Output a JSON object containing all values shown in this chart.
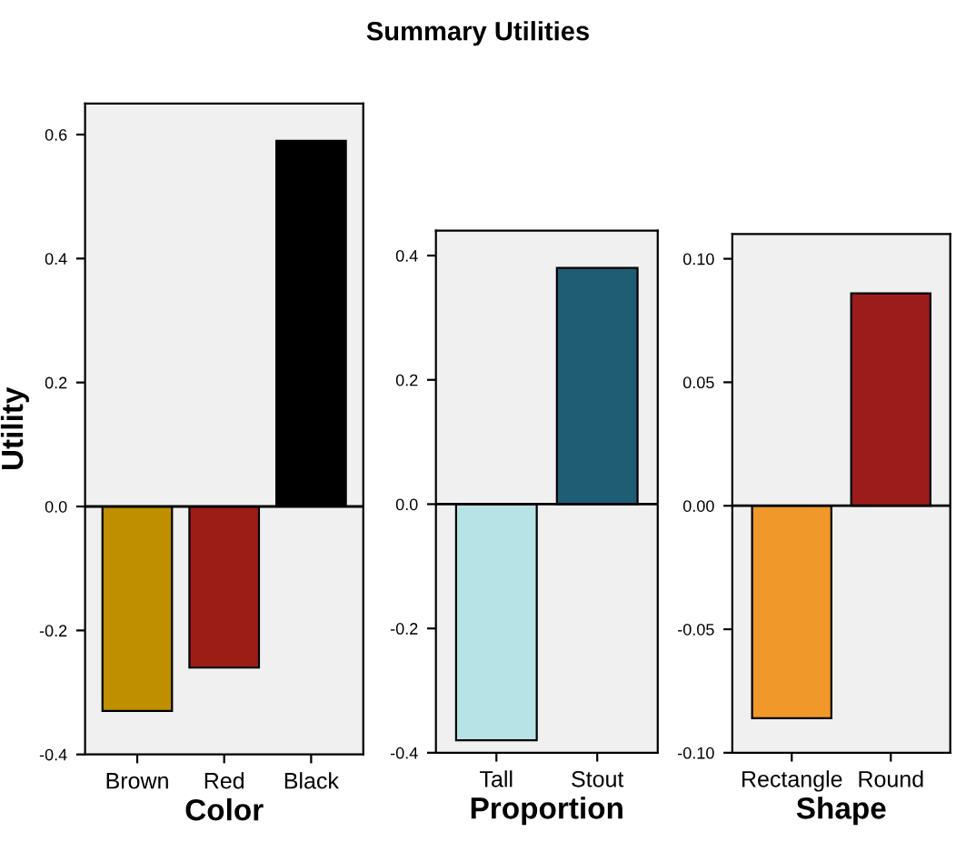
{
  "chart_data": [
    {
      "type": "bar",
      "title": "Summary Utilities",
      "xlabel": "Color",
      "ylabel": "Utility",
      "categories": [
        "Brown",
        "Red",
        "Black"
      ],
      "values": [
        -0.33,
        -0.26,
        0.59
      ],
      "colors": [
        "#bf8f00",
        "#9c1c16",
        "#000000"
      ],
      "ylim": [
        -0.4,
        0.65
      ],
      "yticks": [
        -0.4,
        -0.2,
        {
          "value": 0,
          "label": "0.0"
        },
        0.2,
        0.4,
        0.6
      ],
      "grid": false,
      "legend": false,
      "ref_lines": [
        {
          "axis": "y",
          "value": 0,
          "color": "#000000"
        }
      ]
    },
    {
      "type": "bar",
      "xlabel": "Proportion",
      "categories": [
        "Tall",
        "Stout"
      ],
      "values": [
        -0.38,
        0.38
      ],
      "colors": [
        "#b8e3e6",
        "#1f5d75"
      ],
      "ylim": [
        -0.4,
        0.44
      ],
      "yticks": [
        -0.4,
        -0.2,
        {
          "value": 0,
          "label": "0.0"
        },
        0.2,
        0.4
      ],
      "grid": false,
      "legend": false,
      "ref_lines": [
        {
          "axis": "y",
          "value": 0,
          "color": "#000000"
        }
      ]
    },
    {
      "type": "bar",
      "xlabel": "Shape",
      "categories": [
        "Rectangle",
        "Round"
      ],
      "values": [
        -0.086,
        0.086
      ],
      "colors": [
        "#f0982a",
        "#9c1c1c"
      ],
      "ylim": [
        -0.1,
        0.11
      ],
      "yticks": [
        {
          "value": -0.1,
          "label": "-0.10"
        },
        {
          "value": -0.05,
          "label": "-0.05"
        },
        {
          "value": 0.0,
          "label": "0.00"
        },
        {
          "value": 0.05,
          "label": "0.05"
        },
        {
          "value": 0.1,
          "label": "0.10"
        }
      ],
      "grid": false,
      "legend": false,
      "ref_lines": [
        {
          "axis": "y",
          "value": 0,
          "color": "#000000"
        }
      ]
    }
  ]
}
